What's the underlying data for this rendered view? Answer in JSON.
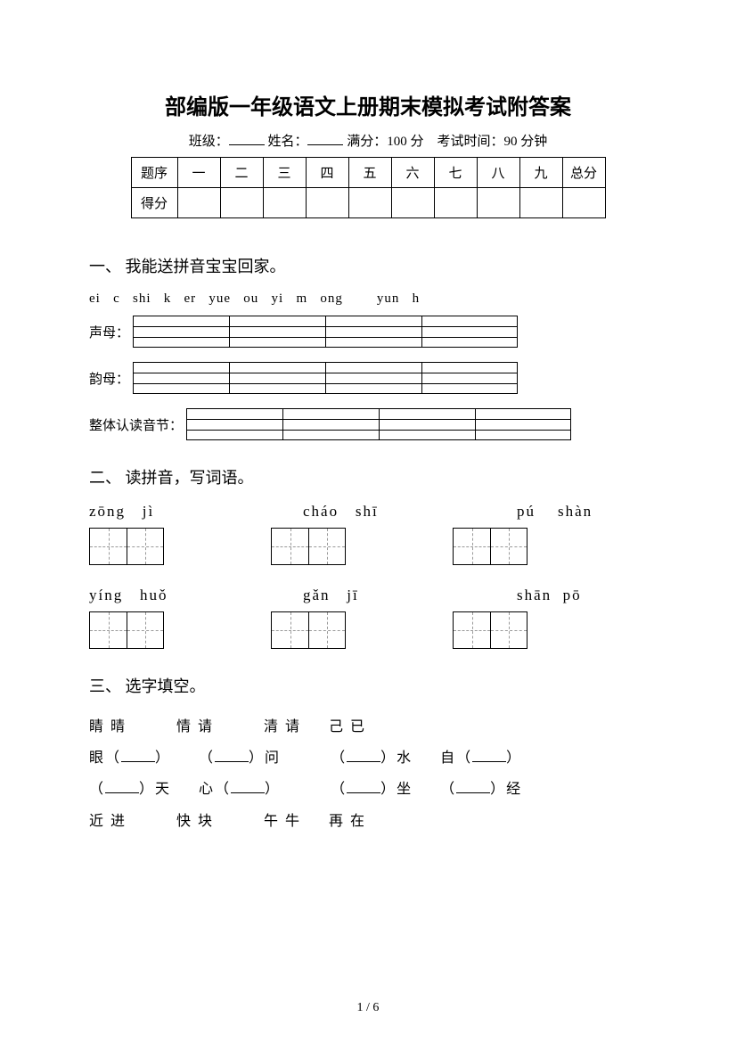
{
  "title": "部编版一年级语文上册期末模拟考试附答案",
  "meta": {
    "class_label": "班级：",
    "name_label": "姓名：",
    "full_score_label": "满分：",
    "full_score_value": "100 分",
    "duration_label": "考试时间：",
    "duration_value": "90 分钟"
  },
  "score_table": {
    "header_label": "题序",
    "columns": [
      "一",
      "二",
      "三",
      "四",
      "五",
      "六",
      "七",
      "八",
      "九",
      "总分"
    ],
    "row2_label": "得分"
  },
  "section1": {
    "heading": "一、 我能送拼音宝宝回家。",
    "pinyin_list": "ei   c   shi   k   er   yue   ou   yi   m   ong        yun   h",
    "cat1_label": "声母：",
    "cat2_label": "韵母：",
    "cat3_label": "整体认读音节：",
    "cells_per_row": 4
  },
  "section2": {
    "heading": "二、 读拼音，写词语。",
    "row1": [
      "zōng   jì",
      "cháo   shī",
      "pú    shàn"
    ],
    "row2": [
      "yíng   huǒ",
      "gǎn   jī",
      "shān  pō"
    ]
  },
  "section3": {
    "heading": "三、 选字填空。",
    "line1": {
      "g1": "睛   晴",
      "g2": "情   请",
      "g3": "清   请",
      "g4": "己   已"
    },
    "line2": {
      "p1a": "眼（",
      "p1b": "）",
      "p2a": "（",
      "p2b": "）问",
      "p3a": "（",
      "p3b": "）水",
      "p4a": "自（",
      "p4b": "）"
    },
    "line3": {
      "p1a": "（",
      "p1b": "）天",
      "p2a": "心（",
      "p2b": "）",
      "p3a": "（",
      "p3b": "）坐",
      "p4a": "（",
      "p4b": "）经"
    },
    "line4": {
      "g1": "近   进",
      "g2": "快   块",
      "g3": "午   牛",
      "g4": "再   在"
    }
  },
  "pager": "1  /  6"
}
